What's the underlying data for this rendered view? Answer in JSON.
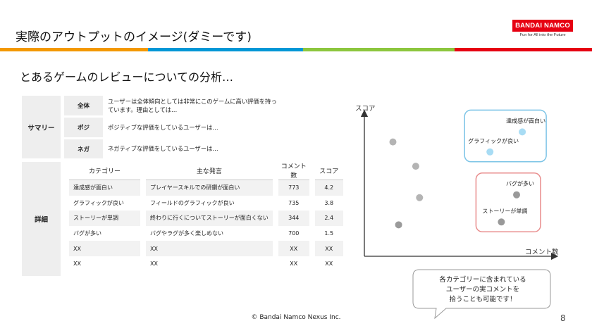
{
  "header": {
    "title": "実際のアウトプットのイメージ(ダミーです)",
    "logo_text": "BANDAI NAMCO",
    "logo_tagline": "Fun for All into the Future"
  },
  "colors": {
    "stripe": [
      "#f39800",
      "#0097d6",
      "#8cc63e",
      "#e60012"
    ],
    "logo": "#e60012"
  },
  "subtitle": "とあるゲームのレビューについての分析…",
  "summary": {
    "label": "サマリー",
    "rows": [
      {
        "category": "全体",
        "text": "ユーザーは全体傾向としては非常にこのゲームに高い評価を持っています。理由としては…"
      },
      {
        "category": "ポジ",
        "text": "ポジティブな評価をしているユーザーは…"
      },
      {
        "category": "ネガ",
        "text": "ネガティブな評価をしているユーザーは…"
      }
    ]
  },
  "detail": {
    "label": "詳細",
    "headers": [
      "カテゴリー",
      "主な発言",
      "コメント数",
      "スコア"
    ],
    "rows": [
      [
        "達成感が面白い",
        "プレイヤースキルでの研鑽が面白い",
        "773",
        "4.2"
      ],
      [
        "グラフィックが良い",
        "フィールドのグラフィックが良い",
        "735",
        "3.8"
      ],
      [
        "ストーリーが単調",
        "終わりに行くについてストーリーが面白くない",
        "344",
        "2.4"
      ],
      [
        "バグが多い",
        "バグやラグが多く楽しめない",
        "700",
        "1.5"
      ],
      [
        "XX",
        "XX",
        "XX",
        "XX"
      ],
      [
        "XX",
        "XX",
        "XX",
        "XX"
      ]
    ]
  },
  "chart_data": {
    "type": "scatter",
    "xlabel": "コメント数",
    "ylabel": "スコア",
    "points": [
      {
        "x": 0.15,
        "y": 0.8
      },
      {
        "x": 0.27,
        "y": 0.63
      },
      {
        "x": 0.29,
        "y": 0.41
      },
      {
        "x": 0.18,
        "y": 0.22
      },
      {
        "x": 0.83,
        "y": 0.87,
        "label": "達成感が面白い",
        "highlight": "positive"
      },
      {
        "x": 0.66,
        "y": 0.73,
        "label": "グラフィックが良い",
        "highlight": "positive"
      },
      {
        "x": 0.8,
        "y": 0.43,
        "label": "バグが多い",
        "highlight": "negative"
      },
      {
        "x": 0.72,
        "y": 0.24,
        "label": "ストーリーが単調",
        "highlight": "negative"
      }
    ],
    "highlight_colors": {
      "positive": "#7cc4e6",
      "negative": "#e88c8c"
    }
  },
  "callout": [
    "各カテゴリーに含まれている",
    "ユーザーの実コメントを",
    "拾うことも可能です！"
  ],
  "footer": {
    "copyright": "© Bandai Namco Nexus Inc.",
    "page": "8"
  }
}
